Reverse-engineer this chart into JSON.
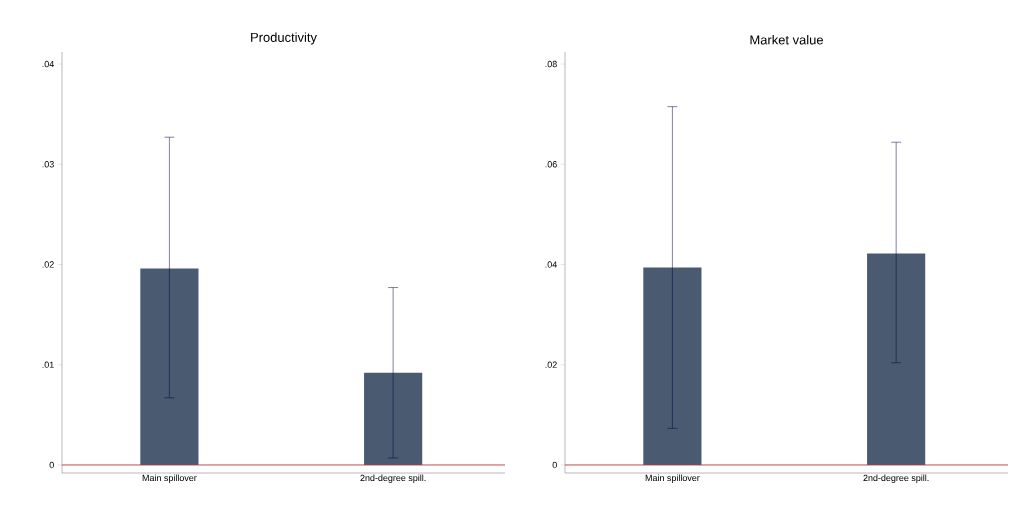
{
  "chart_data": [
    {
      "type": "bar",
      "title": "Productivity",
      "categories": [
        "Main spillover",
        "2nd-degree spill."
      ],
      "values": [
        0.0196,
        0.0092
      ],
      "errors": [
        [
          0.0067,
          0.0327
        ],
        [
          0.0007,
          0.0177
        ]
      ],
      "color": "#4a5a70",
      "ylim": [
        -0.0008,
        0.0412
      ],
      "yticks": [
        0,
        {
          "value": 0.01,
          "label": ".01"
        },
        {
          "value": 0.02,
          "label": ".02"
        },
        {
          "value": 0.03,
          "label": ".03"
        },
        {
          "value": 0.04,
          "label": ".04"
        }
      ],
      "ref_lines": [
        {
          "axis": "y",
          "value": 0,
          "color": "#b03a3a"
        }
      ]
    },
    {
      "type": "bar",
      "title": "Market value",
      "categories": [
        "Main spillover",
        "2nd-degree spill."
      ],
      "values": [
        0.0394,
        0.0422
      ],
      "errors": [
        [
          0.0073,
          0.0715
        ],
        [
          0.0204,
          0.0644
        ]
      ],
      "color": "#4a5a70",
      "ylim": [
        -0.0016,
        0.0824
      ],
      "yticks": [
        0,
        {
          "value": 0.02,
          "label": ".02"
        },
        {
          "value": 0.04,
          "label": ".04"
        },
        {
          "value": 0.06,
          "label": ".06"
        },
        {
          "value": 0.08,
          "label": ".08"
        }
      ],
      "ref_lines": [
        {
          "axis": "y",
          "value": 0,
          "color": "#b03a3a"
        }
      ]
    }
  ]
}
